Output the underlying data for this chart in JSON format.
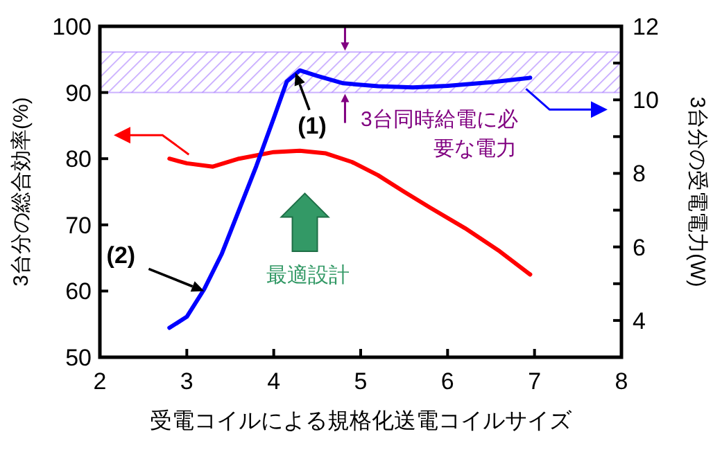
{
  "chart_data": {
    "type": "line",
    "xlabel": "受電コイルによる規格化送電コイルサイズ",
    "ylabel": "3台分の総合効率(%)",
    "y2label": "3台分の受電電力(W)",
    "xlim": [
      2,
      8
    ],
    "xticks": [
      2,
      3,
      4,
      5,
      6,
      7,
      8
    ],
    "ylim": [
      50,
      100
    ],
    "yticks": [
      50,
      60,
      70,
      80,
      90,
      100
    ],
    "y2lim": [
      3,
      12
    ],
    "y2ticks": [
      {
        "value": 3,
        "label": null
      },
      4,
      {
        "value": 5,
        "label": null
      },
      6,
      {
        "value": 7,
        "label": null
      },
      8,
      {
        "value": 9,
        "label": null
      },
      10,
      {
        "value": 11,
        "label": null
      },
      12
    ],
    "marker": "none",
    "line_style": "solid",
    "series": [
      {
        "color": "#ff0000",
        "x": [
          2.8,
          3.0,
          3.3,
          3.6,
          4.0,
          4.3,
          4.6,
          4.9,
          5.2,
          5.5,
          5.8,
          6.2,
          6.6,
          6.95
        ],
        "values": [
          80,
          79.3,
          78.8,
          80,
          81,
          81.2,
          80.8,
          79.5,
          77.5,
          75,
          72.6,
          69.5,
          66,
          62.5
        ]
      },
      {
        "color": "#0000ff",
        "axis": "y2",
        "x": [
          2.8,
          3.0,
          3.2,
          3.4,
          3.6,
          3.8,
          4.0,
          4.15,
          4.3,
          4.5,
          4.8,
          5.2,
          5.6,
          6.0,
          6.5,
          6.95
        ],
        "values": [
          3.8,
          4.1,
          4.85,
          5.8,
          7.0,
          8.2,
          9.5,
          10.5,
          10.8,
          10.65,
          10.45,
          10.37,
          10.34,
          10.38,
          10.48,
          10.6
        ]
      }
    ],
    "bands": [
      {
        "axis": "y2",
        "from": 10.2,
        "to": 11.3,
        "label": "3台同時給電に必要な電力",
        "color": "#9966ff"
      }
    ],
    "annotations": [
      {
        "text": "(1)",
        "x": 4.25,
        "y": 93
      },
      {
        "text": "(2)",
        "x": 3.2,
        "y": 60
      },
      "最適設計"
    ]
  }
}
